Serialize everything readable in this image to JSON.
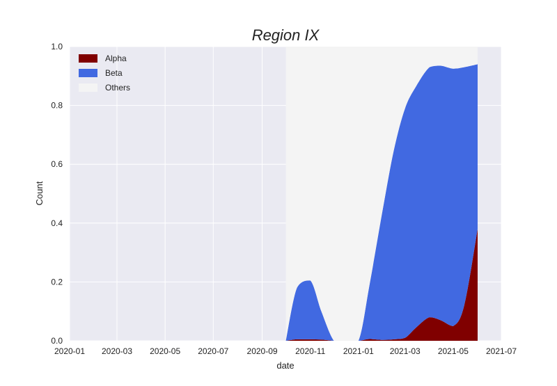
{
  "chart_data": {
    "type": "area",
    "stacked": true,
    "title": "Region IX",
    "xlabel": "date",
    "ylabel": "Count",
    "xlim": [
      "2020-01-01",
      "2021-07-01"
    ],
    "ylim": [
      0,
      1.0
    ],
    "x_ticks": [
      "2020-01",
      "2020-03",
      "2020-05",
      "2020-07",
      "2020-09",
      "2020-11",
      "2021-01",
      "2021-03",
      "2021-05",
      "2021-07"
    ],
    "y_ticks": [
      "0.0",
      "0.2",
      "0.4",
      "0.6",
      "0.8",
      "1.0"
    ],
    "grid": true,
    "legend_position": "top-left",
    "x": [
      "2020-10-01",
      "2020-10-15",
      "2020-11-01",
      "2020-11-15",
      "2020-12-01",
      "2020-12-15",
      "2021-01-01",
      "2021-01-15",
      "2021-02-01",
      "2021-02-15",
      "2021-03-01",
      "2021-03-15",
      "2021-04-01",
      "2021-04-15",
      "2021-05-01",
      "2021-05-15",
      "2021-06-01"
    ],
    "series": [
      {
        "name": "Alpha",
        "color": "#800000",
        "values": [
          0.0,
          0.005,
          0.005,
          0.004,
          0.0,
          0.0,
          0.0,
          0.006,
          0.003,
          0.005,
          0.01,
          0.045,
          0.08,
          0.07,
          0.05,
          0.12,
          0.38
        ]
      },
      {
        "name": "Beta",
        "color": "#4169e1",
        "values": [
          0.0,
          0.175,
          0.2,
          0.096,
          0.0,
          0.0,
          0.0,
          0.184,
          0.447,
          0.645,
          0.78,
          0.82,
          0.85,
          0.865,
          0.875,
          0.81,
          0.56
        ]
      },
      {
        "name": "Others",
        "color": "#f4f4f4",
        "values": [
          1.0,
          0.82,
          0.795,
          0.9,
          1.0,
          1.0,
          1.0,
          0.81,
          0.55,
          0.35,
          0.21,
          0.135,
          0.07,
          0.065,
          0.075,
          0.07,
          0.06
        ]
      }
    ]
  }
}
